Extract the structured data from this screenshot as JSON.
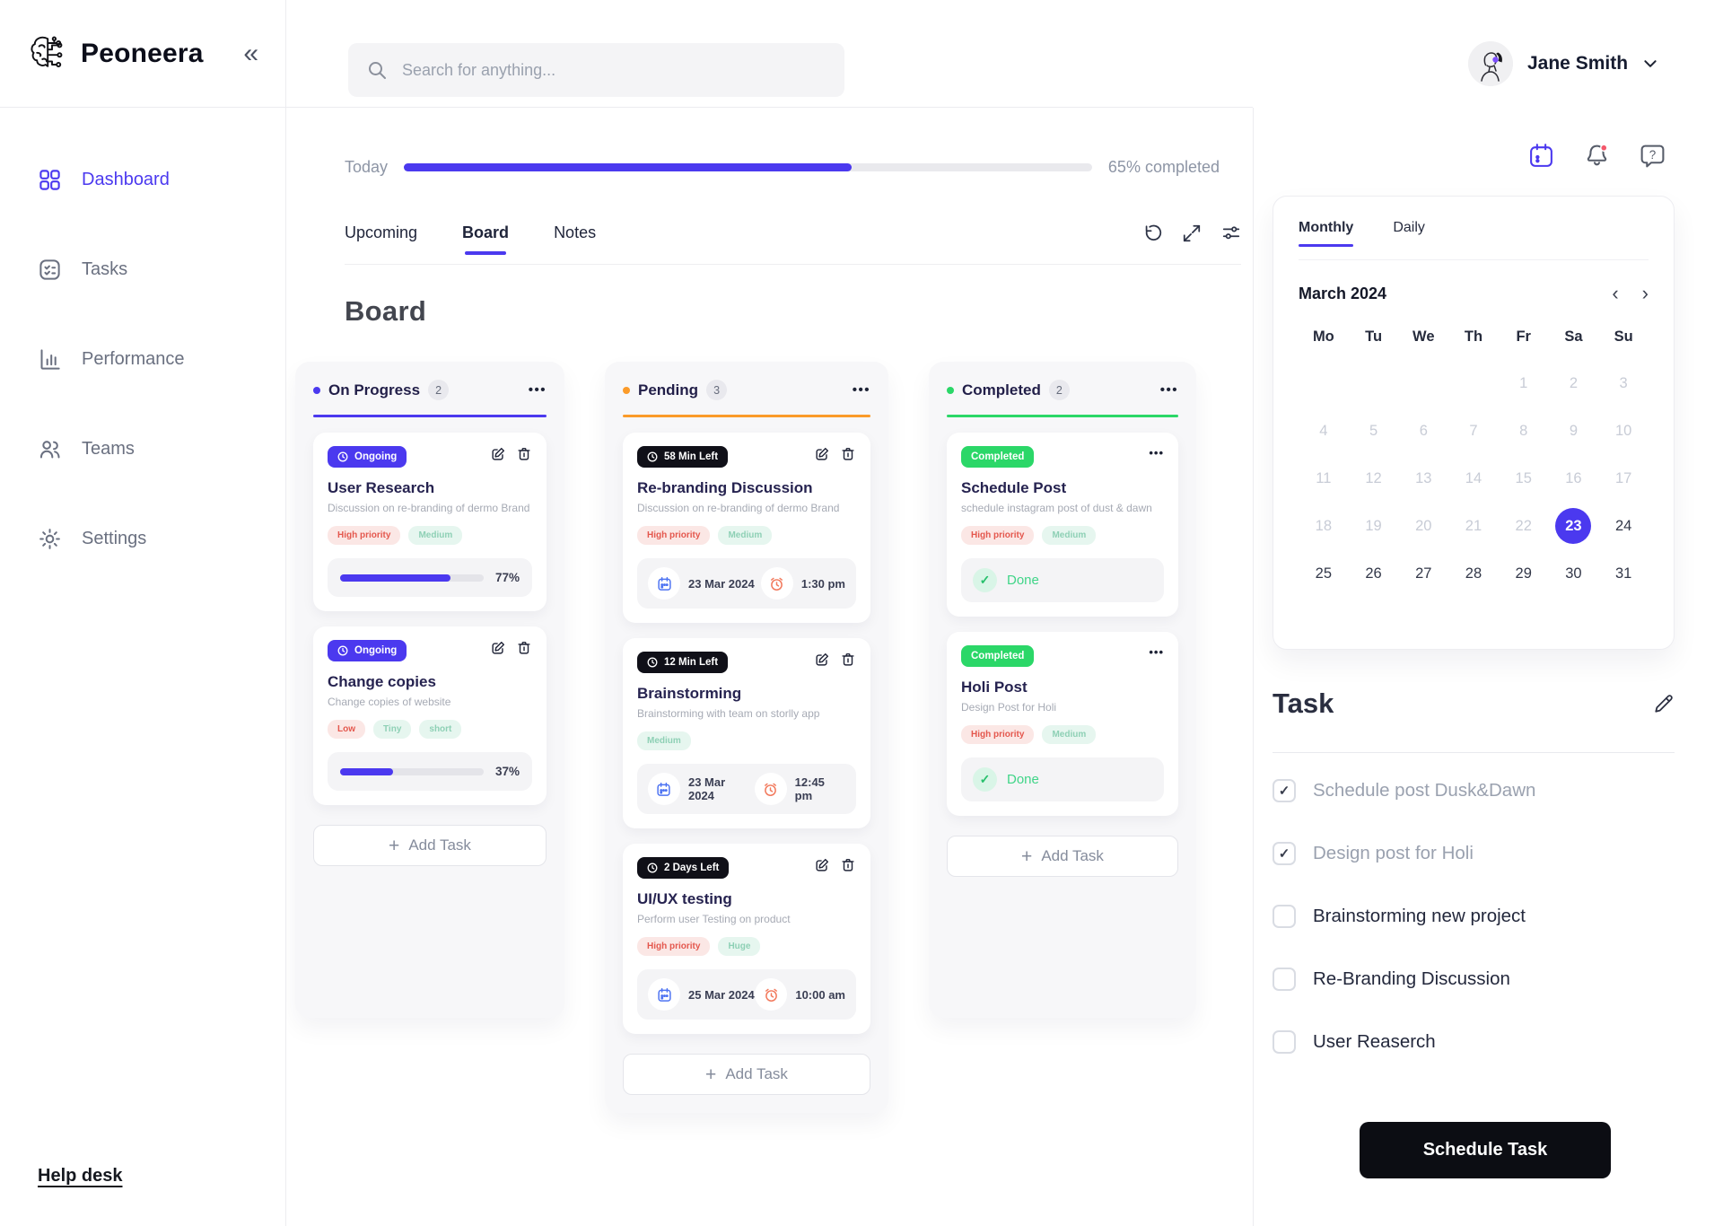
{
  "brand": {
    "name": "Peoneera"
  },
  "icons": {
    "collapse": "«",
    "menu": "•••",
    "plus": "+",
    "check": "✓",
    "prev": "‹",
    "next": "›",
    "question": "?"
  },
  "sidebar": {
    "items": [
      {
        "label": "Dashboard"
      },
      {
        "label": "Tasks"
      },
      {
        "label": "Performance"
      },
      {
        "label": "Teams"
      },
      {
        "label": "Settings"
      }
    ],
    "help_link": "Help desk"
  },
  "header": {
    "search_placeholder": "Search for anything...",
    "user_name": "Jane Smith"
  },
  "today": {
    "label": "Today",
    "percent": 65,
    "status_text": "65% completed"
  },
  "view_tabs": {
    "upcoming": "Upcoming",
    "board": "Board",
    "notes": "Notes"
  },
  "board": {
    "title": "Board",
    "columns": [
      {
        "name": "On Progress",
        "count": "2",
        "add_task": "Add Task",
        "cards": [
          {
            "badge": "Ongoing",
            "title": "User Research",
            "description": "Discussion on re-branding of dermo Brand",
            "tags": [
              "High priority",
              "Medium"
            ],
            "progress": 77,
            "progress_label": "77%"
          },
          {
            "badge": "Ongoing",
            "title": "Change copies",
            "description": "Change copies of website",
            "tags": [
              "Low",
              "Tiny",
              "short"
            ],
            "progress": 37,
            "progress_label": "37%"
          }
        ]
      },
      {
        "name": "Pending",
        "count": "3",
        "add_task": "Add Task",
        "cards": [
          {
            "badge": "58 Min Left",
            "title": "Re-branding Discussion",
            "description": "Discussion on re-branding of dermo Brand",
            "tags": [
              "High priority",
              "Medium"
            ],
            "date": "23 Mar 2024",
            "time": "1:30 pm"
          },
          {
            "badge": "12 Min Left",
            "title": "Brainstorming",
            "description": "Brainstorming with team on storlly app",
            "tags": [
              "Medium"
            ],
            "date": "23 Mar 2024",
            "time": "12:45 pm"
          },
          {
            "badge": "2 Days Left",
            "title": "UI/UX testing",
            "description": "Perform user Testing on product",
            "tags": [
              "High priority",
              "Huge"
            ],
            "date": "25 Mar 2024",
            "time": "10:00 am"
          }
        ]
      },
      {
        "name": "Completed",
        "count": "2",
        "add_task": "Add Task",
        "cards": [
          {
            "badge": "Completed",
            "title": "Schedule Post",
            "description": "schedule instagram post of dust & dawn",
            "tags": [
              "High priority",
              "Medium"
            ],
            "done_label": "Done"
          },
          {
            "badge": "Completed",
            "title": "Holi Post",
            "description": "Design Post for Holi",
            "tags": [
              "High priority",
              "Medium"
            ],
            "done_label": "Done"
          }
        ]
      }
    ]
  },
  "calendar": {
    "tabs": {
      "monthly": "Monthly",
      "daily": "Daily"
    },
    "month_label": "March 2024",
    "day_headers": [
      "Mo",
      "Tu",
      "We",
      "Th",
      "Fr",
      "Sa",
      "Su"
    ],
    "weeks": [
      [
        "",
        "",
        "",
        "",
        "1",
        "2",
        "3"
      ],
      [
        "4",
        "5",
        "6",
        "7",
        "8",
        "9",
        "10"
      ],
      [
        "11",
        "12",
        "13",
        "14",
        "15",
        "16",
        "17"
      ],
      [
        "18",
        "19",
        "20",
        "21",
        "22",
        "23",
        "24"
      ],
      [
        "25",
        "26",
        "27",
        "28",
        "29",
        "30",
        "31"
      ]
    ],
    "selected_date": "23"
  },
  "tasks_panel": {
    "title": "Task",
    "items": [
      {
        "label": "Schedule post Dusk&Dawn",
        "checked": true
      },
      {
        "label": "Design post for Holi",
        "checked": true
      },
      {
        "label": "Brainstorming new project",
        "checked": false
      },
      {
        "label": "Re-Branding Discussion",
        "checked": false
      },
      {
        "label": "User Reaserch",
        "checked": false
      }
    ],
    "button_label": "Schedule Task"
  },
  "colors": {
    "primary": "#4b39ef",
    "orange": "#fb9b2a",
    "green": "#2bd768",
    "danger": "#e4574d",
    "notification": "#f4586b"
  }
}
